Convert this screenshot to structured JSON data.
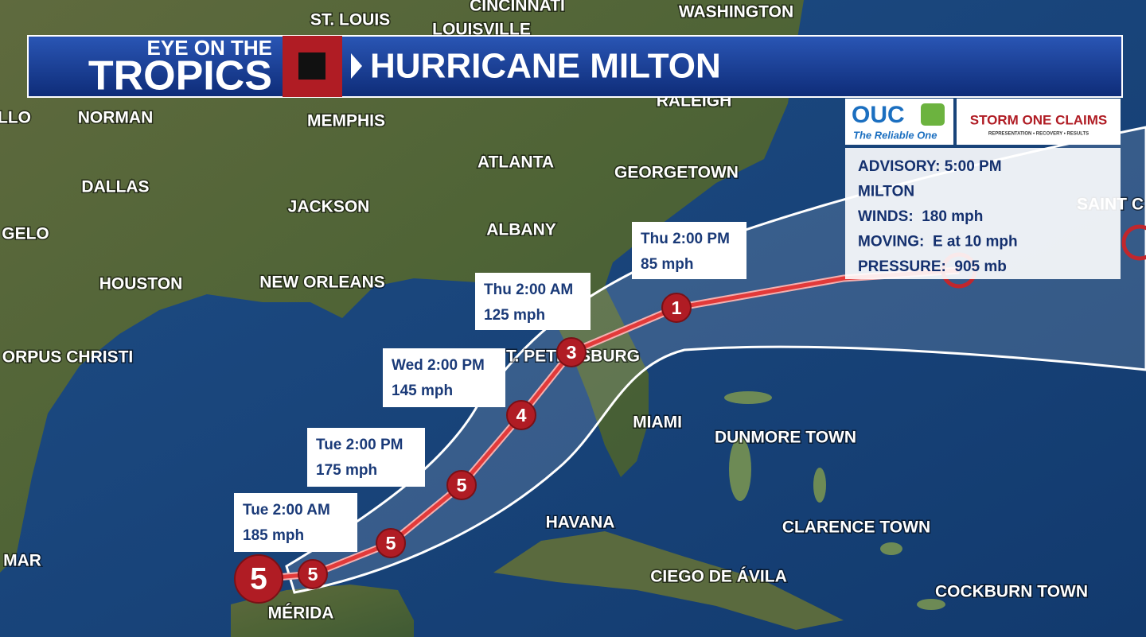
{
  "banner": {
    "kicker": "EYE ON THE",
    "show": "TROPICS",
    "title": "HURRICANE MILTON"
  },
  "sponsors": {
    "ouc": "OUC",
    "ouc_tagline": "The Reliable One",
    "storm": "STORM ONE CLAIMS",
    "storm_tagline": "REPRESENTATION • RECOVERY • RESULTS"
  },
  "advisory": [
    "ADVISORY: 5:00 PM",
    "MILTON",
    "WINDS:  180 mph",
    "MOVING:  E at 10 mph",
    "PRESSURE:  905 mb"
  ],
  "cities": [
    "ST. LOUIS",
    "CINCINNATI",
    "LOUISVILLE",
    "WASHINGTON",
    "RALEIGH",
    "LLO",
    "NORMAN",
    "MEMPHIS",
    "ATLANTA",
    "GEORGETOWN",
    "DALLAS",
    "JACKSON",
    "ALBANY",
    "GELO",
    "HOUSTON",
    "NEW ORLEANS",
    "ORPUS CHRISTI",
    "T. PETERSBURG",
    "MIAMI",
    "DUNMORE TOWN",
    "HAVANA",
    "CLARENCE TOWN",
    "MAR",
    "CIEGO DE ÁVILA",
    "COCKBURN TOWN",
    "MÉRIDA",
    "SAINT C"
  ],
  "track_categories": [
    "5",
    "5",
    "5",
    "5",
    "4",
    "3",
    "1"
  ],
  "forecast": [
    {
      "time": "Tue 2:00 AM",
      "wind": "185 mph"
    },
    {
      "time": "Tue 2:00 PM",
      "wind": "175 mph"
    },
    {
      "time": "Wed 2:00 PM",
      "wind": "145 mph"
    },
    {
      "time": "Thu 2:00 AM",
      "wind": "125 mph"
    },
    {
      "time": "Thu 2:00 PM",
      "wind": "85 mph"
    }
  ]
}
